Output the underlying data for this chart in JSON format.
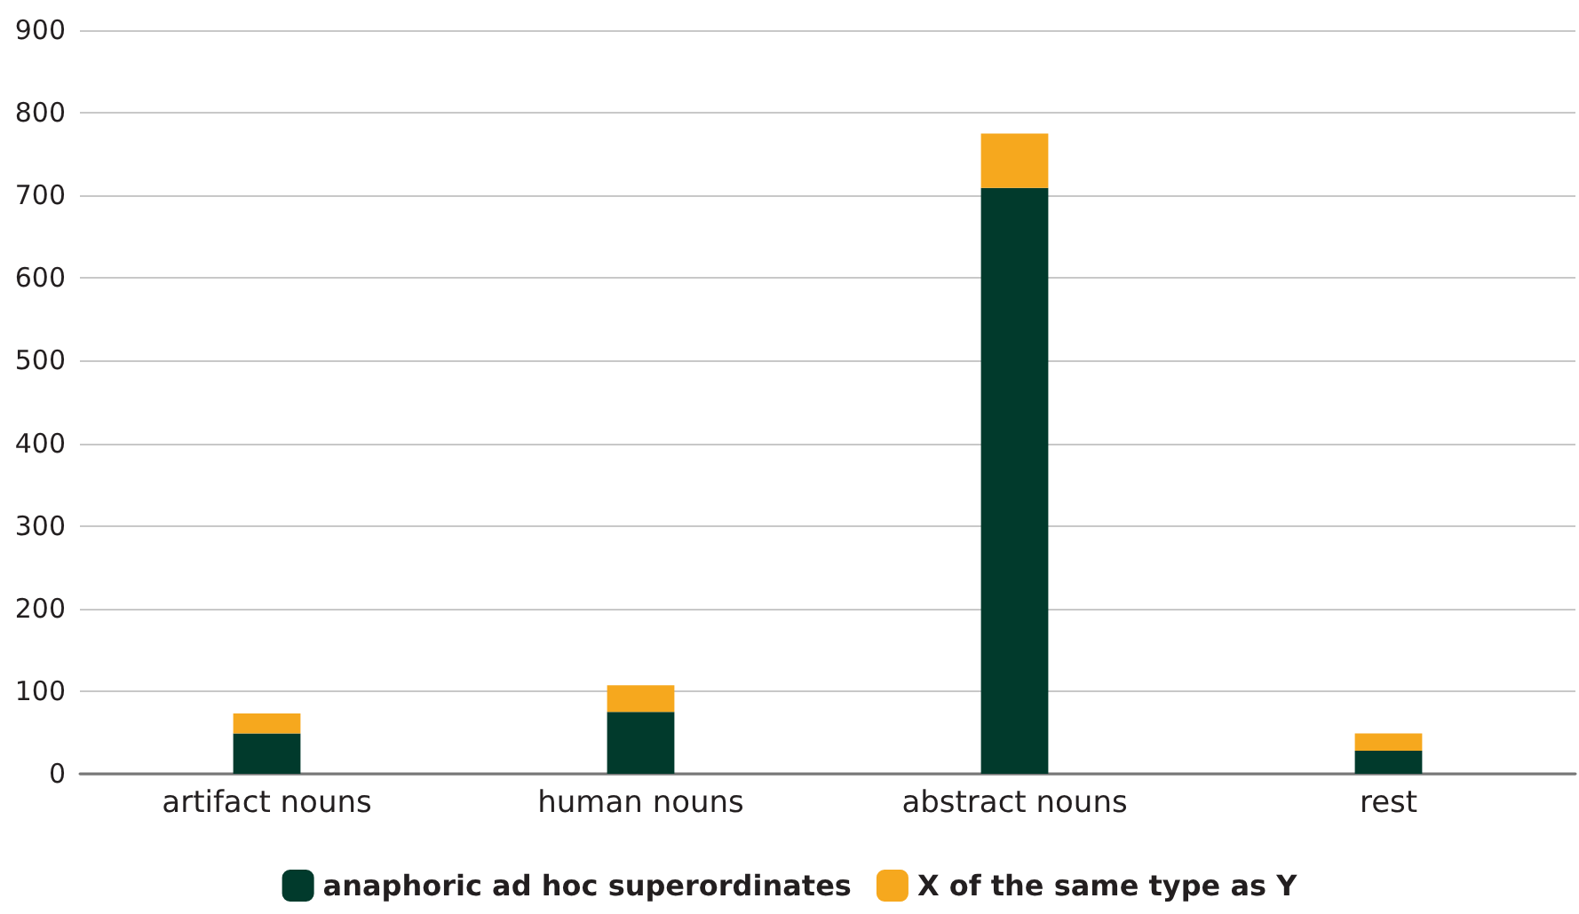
{
  "chart_data": {
    "type": "bar",
    "stacked": true,
    "categories": [
      "artifact nouns",
      "human nouns",
      "abstract nouns",
      "rest"
    ],
    "series": [
      {
        "name": "anaphoric ad hoc superordinates",
        "color": "#013a2c",
        "values": [
          49,
          75,
          709,
          28
        ]
      },
      {
        "name": "X of the same type as Y",
        "color": "#f6a81e",
        "values": [
          24,
          32,
          66,
          21
        ]
      }
    ],
    "ylim": [
      0,
      900
    ],
    "yticks": [
      0,
      100,
      200,
      300,
      400,
      500,
      600,
      700,
      800,
      900
    ],
    "grid": "y",
    "legend": "bottom"
  }
}
